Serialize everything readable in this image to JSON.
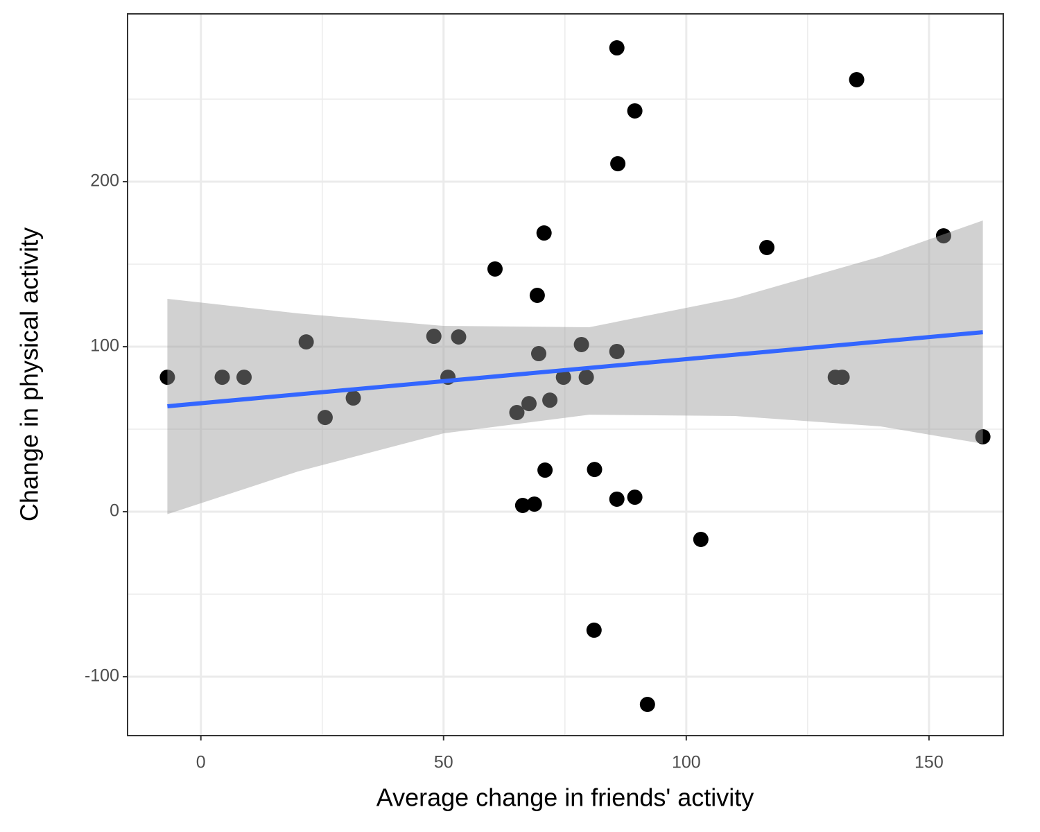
{
  "chart_data": {
    "type": "scatter",
    "x_label": "Average change in friends' activity",
    "y_label": "Change in physical activity",
    "xlim": [
      -15.1,
      165.3
    ],
    "ylim": [
      -135.7,
      301.7
    ],
    "xticks": [
      0,
      50,
      100,
      150
    ],
    "yticks": [
      -100,
      0,
      100,
      200
    ],
    "xminor": [
      25,
      75,
      125
    ],
    "yminor": [
      -50,
      50,
      150,
      250
    ],
    "grid": true,
    "series": [
      {
        "color": "#000000",
        "x": [
          -6.9,
          4.4,
          8.9,
          21.7,
          25.6,
          31.4,
          48.0,
          50.9,
          53.1,
          60.6,
          65.1,
          66.3,
          67.6,
          68.7,
          69.3,
          69.6,
          70.7,
          70.9,
          71.9,
          74.7,
          78.4,
          79.4,
          81.0,
          81.1,
          85.7,
          85.9,
          85.7,
          85.7,
          89.4,
          89.4,
          92.0,
          103.0,
          116.6,
          130.7,
          132.1,
          135.1,
          153.0,
          161.1
        ],
        "values": [
          81.5,
          81.5,
          81.5,
          102.9,
          57.1,
          68.9,
          106.3,
          81.5,
          105.9,
          147.1,
          60.1,
          3.8,
          65.5,
          4.6,
          131.1,
          95.8,
          168.9,
          25.2,
          67.6,
          81.5,
          101.3,
          81.5,
          -71.8,
          25.6,
          281.1,
          210.9,
          97.1,
          7.6,
          242.9,
          8.8,
          -116.8,
          -16.8,
          160.1,
          81.5,
          81.5,
          261.8,
          167.2,
          45.4
        ]
      }
    ],
    "band": {
      "color": "#999999",
      "x": [
        -6.9,
        20,
        50,
        80,
        110,
        140,
        161.1
      ],
      "upper": [
        129.0,
        120.2,
        112.6,
        111.8,
        129.4,
        154.6,
        176.5
      ],
      "lower": [
        -1.5,
        24.4,
        47.5,
        58.8,
        58.0,
        51.7,
        41.2
      ]
    },
    "fit": {
      "color": "#3366ff",
      "x": [
        -6.9,
        161.1
      ],
      "values": [
        63.9,
        108.8
      ]
    }
  }
}
